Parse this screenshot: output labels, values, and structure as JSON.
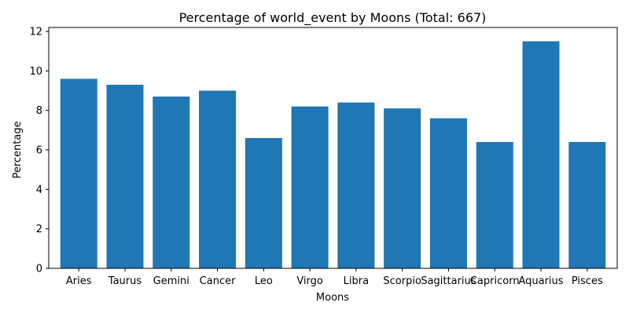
{
  "chart_data": {
    "type": "bar",
    "title": "Percentage of world_event by Moons (Total: 667)",
    "xlabel": "Moons",
    "ylabel": "Percentage",
    "categories": [
      "Aries",
      "Taurus",
      "Gemini",
      "Cancer",
      "Leo",
      "Virgo",
      "Libra",
      "Scorpio",
      "Sagittarius",
      "Capricorn",
      "Aquarius",
      "Pisces"
    ],
    "values": [
      9.6,
      9.3,
      8.7,
      9.0,
      6.6,
      8.2,
      8.4,
      8.1,
      7.6,
      6.4,
      11.5,
      6.4
    ],
    "ylim": [
      0,
      12.2
    ],
    "yticks": [
      "0",
      "2",
      "4",
      "6",
      "8",
      "10",
      "12"
    ],
    "grid": false,
    "bar_color": "#1f77b4"
  }
}
